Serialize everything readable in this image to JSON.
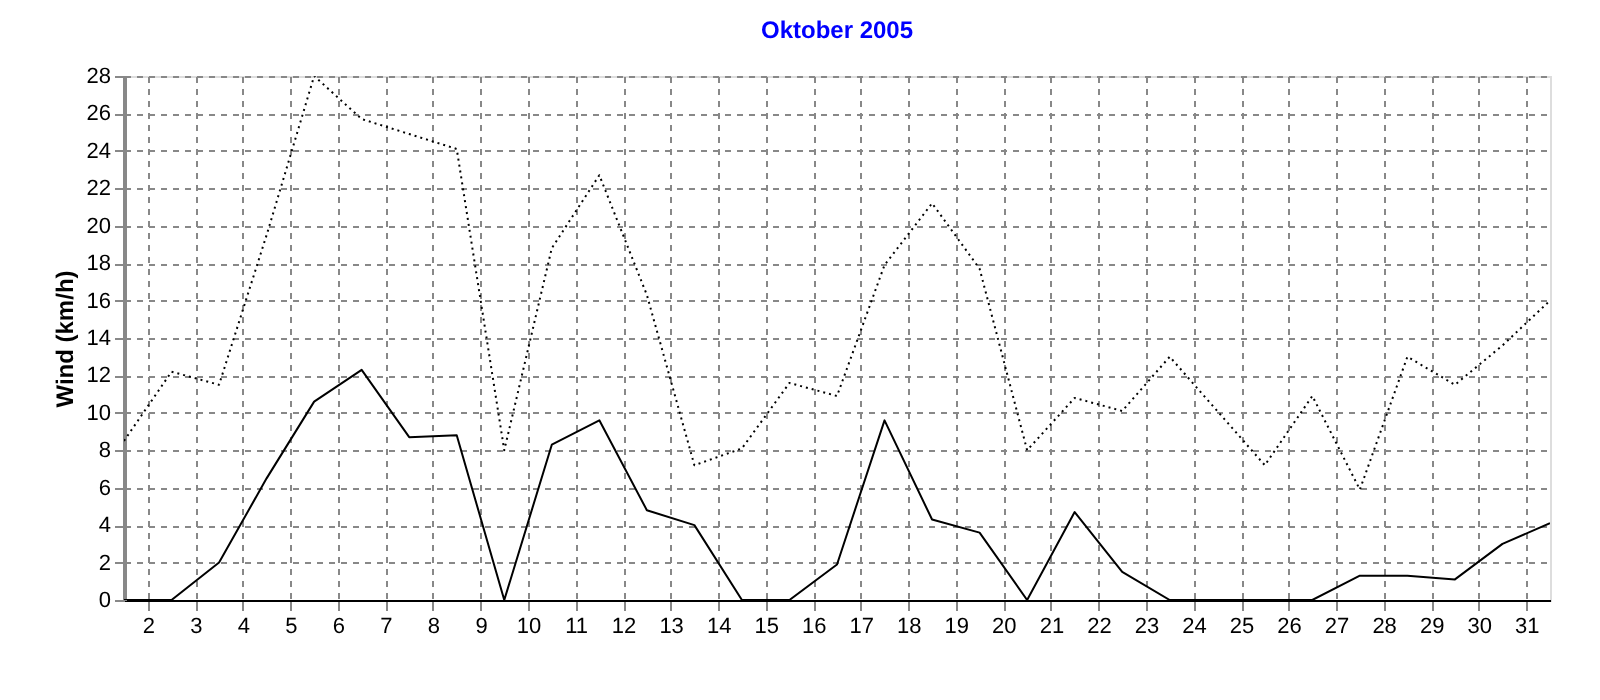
{
  "chart_data": {
    "type": "line",
    "title": "Oktober 2005",
    "ylabel": "Wind  (km/h)",
    "x": [
      1.5,
      2.5,
      3.5,
      4.5,
      5.5,
      6.5,
      7.5,
      8.5,
      9.5,
      10.5,
      11.5,
      12.5,
      13.5,
      14.5,
      15.5,
      16.5,
      17.5,
      18.5,
      19.5,
      20.5,
      21.5,
      22.5,
      23.5,
      24.5,
      25.5,
      26.5,
      27.5,
      28.5,
      29.5,
      30.5,
      31.5
    ],
    "series": [
      {
        "color": "#000000",
        "line_style": "dotted",
        "values": [
          8.5,
          12.2,
          11.5,
          19.5,
          28,
          25.7,
          24.9,
          24.1,
          8.0,
          18.8,
          22.7,
          16.3,
          7.2,
          8.1,
          11.6,
          10.9,
          17.9,
          21.2,
          17.7,
          8.0,
          10.8,
          10.1,
          13.0,
          10.1,
          7.2,
          10.9,
          5.9,
          13.0,
          11.5,
          13.6,
          16.0
        ]
      },
      {
        "color": "#000000",
        "line_style": "solid",
        "values": [
          0,
          0,
          2.0,
          6.5,
          10.6,
          12.3,
          8.7,
          8.8,
          0,
          8.3,
          9.6,
          4.8,
          4.0,
          0,
          0,
          1.9,
          9.6,
          4.3,
          3.6,
          0,
          4.7,
          1.5,
          0,
          0,
          0,
          0,
          1.3,
          1.3,
          1.1,
          3.0,
          4.1
        ]
      }
    ],
    "xlim": [
      1.5,
      31.5
    ],
    "xticks": [
      2,
      3,
      4,
      5,
      6,
      7,
      8,
      9,
      10,
      11,
      12,
      13,
      14,
      15,
      16,
      17,
      18,
      19,
      20,
      21,
      22,
      23,
      24,
      25,
      26,
      27,
      28,
      29,
      30,
      31
    ],
    "ylim": [
      0,
      28
    ],
    "yticks": [
      0,
      2,
      4,
      6,
      8,
      10,
      12,
      14,
      16,
      18,
      20,
      22,
      24,
      26,
      28
    ],
    "grid": true,
    "marker": "none"
  }
}
